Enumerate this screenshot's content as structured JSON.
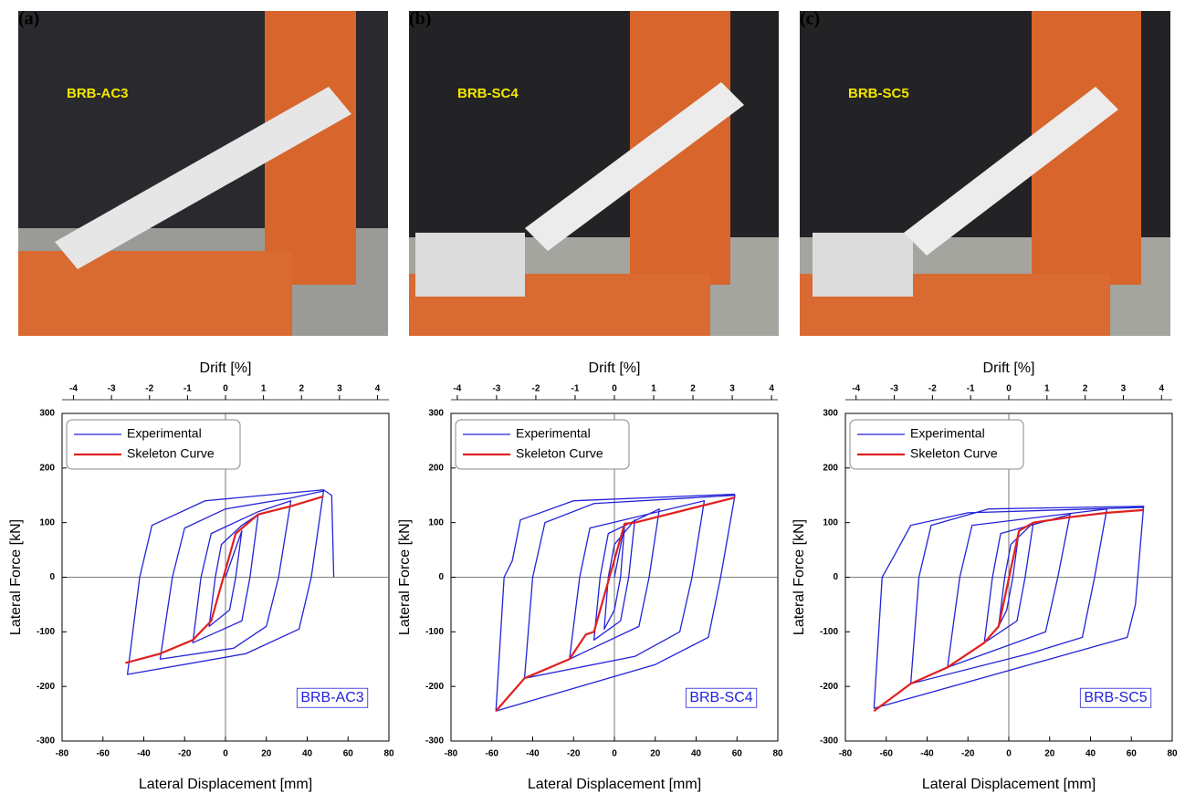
{
  "panels": [
    {
      "label": "(a)",
      "photo_label": "BRB-AC3"
    },
    {
      "label": "(b)",
      "photo_label": "BRB-SC4"
    },
    {
      "label": "(c)",
      "photo_label": "BRB-SC5"
    }
  ],
  "chart_data": [
    {
      "type": "line",
      "x_label": "Lateral Displacement [mm]",
      "y_label": "Lateral Force [kN]",
      "x2_label": "Drift [%]",
      "xlim": [
        -80,
        80
      ],
      "xticks": [
        -80,
        -60,
        -40,
        -20,
        0,
        20,
        40,
        60,
        80
      ],
      "ylim": [
        -300,
        300
      ],
      "yticks": [
        -300,
        -200,
        -100,
        0,
        100,
        200,
        300
      ],
      "x2lim": [
        -4.3,
        4.3
      ],
      "x2ticks": [
        -4,
        -3,
        -2,
        -1,
        0,
        1,
        2,
        3,
        4
      ],
      "grid": false,
      "legend": "upper left",
      "annotation": "BRB-AC3",
      "series": [
        {
          "name": "Experimental",
          "color": "#2323d8",
          "x": [
            0,
            8,
            5,
            2,
            -8,
            -5,
            -2,
            8,
            16,
            12,
            8,
            -16,
            -12,
            -7,
            16,
            32,
            26,
            20,
            4,
            -32,
            -26,
            -20,
            0,
            32,
            48,
            42,
            36,
            10,
            -48,
            -42,
            -36,
            -10,
            48,
            52,
            53
          ],
          "values": [
            0,
            85,
            0,
            -60,
            -90,
            0,
            60,
            95,
            115,
            0,
            -80,
            -120,
            0,
            80,
            120,
            140,
            0,
            -90,
            -130,
            -150,
            0,
            90,
            125,
            145,
            158,
            0,
            -95,
            -140,
            -178,
            0,
            95,
            140,
            160,
            150,
            0
          ]
        },
        {
          "name": "Skeleton Curve",
          "color": "#e02020",
          "x": [
            -49,
            -32,
            -16,
            -7,
            5,
            16,
            32,
            48
          ],
          "values": [
            -157,
            -140,
            -115,
            -80,
            80,
            115,
            130,
            148
          ]
        }
      ]
    },
    {
      "type": "line",
      "x_label": "Lateral Displacement [mm]",
      "y_label": "Lateral Force [kN]",
      "x2_label": "Drift [%]",
      "xlim": [
        -80,
        80
      ],
      "xticks": [
        -80,
        -60,
        -40,
        -20,
        0,
        20,
        40,
        60,
        80
      ],
      "ylim": [
        -300,
        300
      ],
      "yticks": [
        -300,
        -200,
        -100,
        0,
        100,
        200,
        300
      ],
      "x2lim": [
        -4.16,
        4.16
      ],
      "x2ticks": [
        -4,
        -3,
        -2,
        -1,
        0,
        1,
        2,
        3,
        4
      ],
      "grid": false,
      "legend": "upper left",
      "annotation": "BRB-SC4",
      "series": [
        {
          "name": "Experimental",
          "color": "#2323d8",
          "x": [
            0,
            5,
            3,
            0,
            -5,
            -3,
            0,
            10,
            7,
            3,
            -10,
            -7,
            -3,
            22,
            17,
            12,
            -22,
            -17,
            -12,
            44,
            38,
            32,
            10,
            -44,
            -40,
            -34,
            -10,
            59,
            52,
            46,
            20,
            -58,
            -54,
            -50,
            -46,
            -20,
            59
          ],
          "values": [
            0,
            95,
            0,
            -60,
            -95,
            0,
            60,
            105,
            0,
            -80,
            -115,
            0,
            80,
            125,
            0,
            -90,
            -150,
            0,
            90,
            140,
            0,
            -100,
            -145,
            -185,
            0,
            100,
            135,
            150,
            0,
            -110,
            -160,
            -245,
            0,
            30,
            105,
            140,
            152
          ]
        },
        {
          "name": "Skeleton Curve",
          "color": "#e02020",
          "x": [
            -58,
            -44,
            -22,
            -14,
            -10,
            5,
            10,
            59
          ],
          "values": [
            -245,
            -185,
            -150,
            -105,
            -100,
            98,
            100,
            146
          ]
        }
      ]
    },
    {
      "type": "line",
      "x_label": "Lateral Displacement [mm]",
      "y_label": "Lateral Force [kN]",
      "x2_label": "Drift [%]",
      "xlim": [
        -80,
        80
      ],
      "xticks": [
        -80,
        -60,
        -40,
        -20,
        0,
        20,
        40,
        60,
        80
      ],
      "ylim": [
        -300,
        300
      ],
      "yticks": [
        -300,
        -200,
        -100,
        0,
        100,
        200,
        300
      ],
      "x2lim": [
        -4.28,
        4.28
      ],
      "x2ticks": [
        -4,
        -3,
        -2,
        -1,
        0,
        1,
        2,
        3,
        4
      ],
      "grid": false,
      "legend": "upper left",
      "annotation": "BRB-SC5",
      "series": [
        {
          "name": "Experimental",
          "color": "#2323d8",
          "x": [
            0,
            5,
            2,
            -1,
            -5,
            -2,
            1,
            12,
            8,
            4,
            -12,
            -8,
            -4,
            30,
            24,
            18,
            -30,
            -24,
            -18,
            48,
            42,
            36,
            10,
            -48,
            -44,
            -38,
            -10,
            66,
            62,
            58,
            20,
            -66,
            -62,
            -56,
            -48,
            -20,
            66
          ],
          "values": [
            0,
            85,
            0,
            -60,
            -90,
            0,
            60,
            100,
            0,
            -80,
            -120,
            0,
            80,
            115,
            0,
            -100,
            -165,
            0,
            95,
            125,
            0,
            -110,
            -140,
            -195,
            0,
            95,
            125,
            130,
            -50,
            -110,
            -150,
            -240,
            0,
            40,
            95,
            118,
            128
          ]
        },
        {
          "name": "Skeleton Curve",
          "color": "#e02020",
          "x": [
            -66,
            -48,
            -30,
            -12,
            -5,
            5,
            12,
            30,
            48,
            66
          ],
          "values": [
            -245,
            -195,
            -165,
            -120,
            -90,
            85,
            100,
            110,
            118,
            123
          ]
        }
      ]
    }
  ]
}
